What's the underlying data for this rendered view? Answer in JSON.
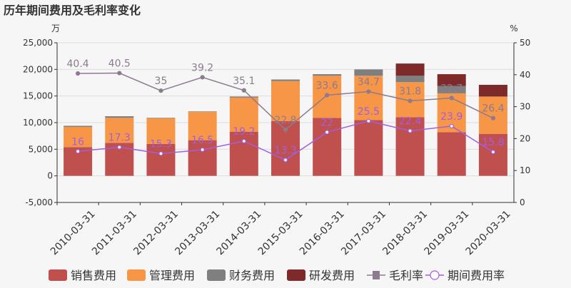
{
  "chart_data": {
    "type": "bar",
    "title": "历年期间费用及毛利率变化",
    "left_axis_unit": "万",
    "right_axis_unit": "%",
    "categories": [
      "2010-03-31",
      "2011-03-31",
      "2012-03-31",
      "2013-03-31",
      "2014-03-31",
      "2015-03-31",
      "2016-03-31",
      "2017-03-31",
      "2018-03-31",
      "2019-03-31",
      "2020-03-31"
    ],
    "ylim": [
      -5000,
      25000
    ],
    "yticks": [
      "-5,000",
      "0",
      "5,000",
      "10,000",
      "15,000",
      "20,000",
      "25,000"
    ],
    "ytick_values": [
      -5000,
      0,
      5000,
      10000,
      15000,
      20000,
      25000
    ],
    "y2lim": [
      0,
      50
    ],
    "y2ticks": [
      "0",
      "10",
      "20",
      "30",
      "40",
      "50"
    ],
    "y2tick_values": [
      0,
      10,
      20,
      30,
      40,
      50
    ],
    "grid": true,
    "legend_position": "bottom",
    "bar_series": [
      {
        "name": "销售费用",
        "color": "#c0504d",
        "values": [
          5400,
          6200,
          6000,
          6700,
          8300,
          10300,
          10900,
          10500,
          11000,
          8200,
          7900
        ]
      },
      {
        "name": "管理费用",
        "color": "#f79646",
        "values": [
          3800,
          4700,
          4800,
          5300,
          6400,
          7500,
          7900,
          8300,
          6600,
          7300,
          7000
        ]
      },
      {
        "name": "财务费用",
        "color": "#7f7f7f",
        "values": [
          200,
          300,
          100,
          100,
          200,
          300,
          300,
          1200,
          1200,
          1400,
          0
        ]
      },
      {
        "name": "研发费用",
        "color": "#7f2a2a",
        "values": [
          0,
          0,
          0,
          0,
          0,
          0,
          0,
          0,
          2300,
          2200,
          2200
        ]
      }
    ],
    "line_series": [
      {
        "name": "毛利率",
        "color": "#8c7b8f",
        "values": [
          40.4,
          40.5,
          35,
          39.2,
          35.1,
          22.8,
          33.6,
          34.7,
          31.8,
          32.7,
          26.4
        ],
        "labels": [
          "40.4",
          "40.5",
          "35",
          "39.2",
          "35.1",
          "22.8",
          "33.6",
          "34.7",
          "31.8",
          "32.7",
          "26.4"
        ]
      },
      {
        "name": "期间费用率",
        "color": "#a25ee0",
        "values": [
          16,
          17.3,
          15.3,
          16.5,
          19.2,
          13.3,
          22,
          25.5,
          22.4,
          23.9,
          15.8
        ],
        "labels": [
          "16",
          "17.3",
          "15.3",
          "16.5",
          "19.2",
          "13.3",
          "22",
          "25.5",
          "22.4",
          "23.9",
          "15.8"
        ]
      }
    ]
  }
}
